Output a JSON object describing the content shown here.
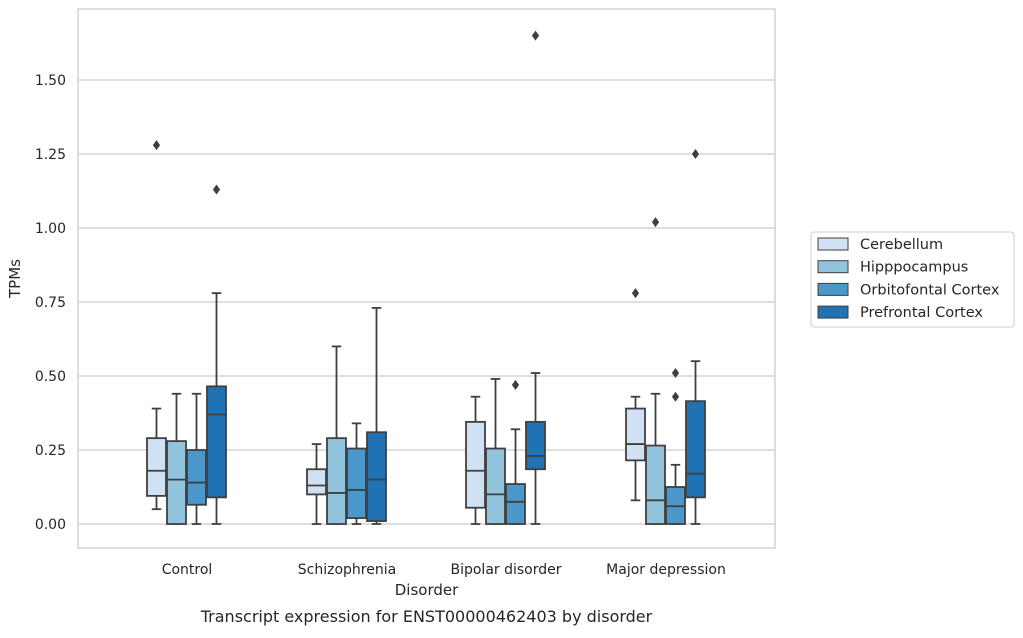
{
  "chart_data": {
    "type": "box",
    "caption": "Transcript expression for ENST00000462403 by disorder",
    "xlabel": "Disorder",
    "ylabel": "TPMs",
    "ylim": [
      -0.08,
      1.78
    ],
    "yticks": [
      0.0,
      0.25,
      0.5,
      0.75,
      1.0,
      1.25,
      1.5
    ],
    "ytick_labels": [
      "0.00",
      "0.25",
      "0.50",
      "0.75",
      "1.00",
      "1.25",
      "1.50"
    ],
    "grid": true,
    "legend_position": "right",
    "categories": [
      "Control",
      "Schizophrenia",
      "Bipolar disorder",
      "Major depression"
    ],
    "series": [
      {
        "name": "Cerebellum",
        "color": "#cfe1f2",
        "boxes": [
          {
            "whisker_low": 0.05,
            "q1": 0.095,
            "median": 0.18,
            "q3": 0.29,
            "whisker_high": 0.39,
            "outliers": [
              1.28
            ]
          },
          {
            "whisker_low": 0.0,
            "q1": 0.1,
            "median": 0.13,
            "q3": 0.185,
            "whisker_high": 0.27,
            "outliers": []
          },
          {
            "whisker_low": 0.0,
            "q1": 0.055,
            "median": 0.18,
            "q3": 0.345,
            "whisker_high": 0.43,
            "outliers": []
          },
          {
            "whisker_low": 0.08,
            "q1": 0.215,
            "median": 0.27,
            "q3": 0.39,
            "whisker_high": 0.43,
            "outliers": [
              0.78
            ]
          }
        ]
      },
      {
        "name": "Hipppocampus",
        "color": "#93c4de",
        "boxes": [
          {
            "whisker_low": 0.0,
            "q1": 0.0,
            "median": 0.15,
            "q3": 0.28,
            "whisker_high": 0.44,
            "outliers": []
          },
          {
            "whisker_low": 0.0,
            "q1": 0.0,
            "median": 0.105,
            "q3": 0.29,
            "whisker_high": 0.6,
            "outliers": []
          },
          {
            "whisker_low": 0.0,
            "q1": 0.0,
            "median": 0.1,
            "q3": 0.255,
            "whisker_high": 0.49,
            "outliers": []
          },
          {
            "whisker_low": 0.0,
            "q1": 0.0,
            "median": 0.08,
            "q3": 0.265,
            "whisker_high": 0.44,
            "outliers": [
              1.02
            ]
          }
        ]
      },
      {
        "name": "Orbitofontal Cortex",
        "color": "#4a98c9",
        "boxes": [
          {
            "whisker_low": 0.0,
            "q1": 0.065,
            "median": 0.14,
            "q3": 0.25,
            "whisker_high": 0.44,
            "outliers": []
          },
          {
            "whisker_low": 0.0,
            "q1": 0.02,
            "median": 0.115,
            "q3": 0.255,
            "whisker_high": 0.34,
            "outliers": []
          },
          {
            "whisker_low": 0.0,
            "q1": 0.0,
            "median": 0.075,
            "q3": 0.135,
            "whisker_high": 0.32,
            "outliers": [
              0.47
            ]
          },
          {
            "whisker_low": 0.0,
            "q1": 0.0,
            "median": 0.06,
            "q3": 0.125,
            "whisker_high": 0.2,
            "outliers": [
              0.43,
              0.51
            ]
          }
        ]
      },
      {
        "name": "Prefrontal Cortex",
        "color": "#2171b5",
        "boxes": [
          {
            "whisker_low": 0.0,
            "q1": 0.09,
            "median": 0.37,
            "q3": 0.465,
            "whisker_high": 0.78,
            "outliers": [
              1.13
            ]
          },
          {
            "whisker_low": 0.0,
            "q1": 0.01,
            "median": 0.15,
            "q3": 0.31,
            "whisker_high": 0.73,
            "outliers": []
          },
          {
            "whisker_low": 0.0,
            "q1": 0.185,
            "median": 0.23,
            "q3": 0.345,
            "whisker_high": 0.51,
            "outliers": [
              1.65
            ]
          },
          {
            "whisker_low": 0.0,
            "q1": 0.09,
            "median": 0.17,
            "q3": 0.415,
            "whisker_high": 0.55,
            "outliers": [
              1.25
            ]
          }
        ]
      }
    ]
  }
}
